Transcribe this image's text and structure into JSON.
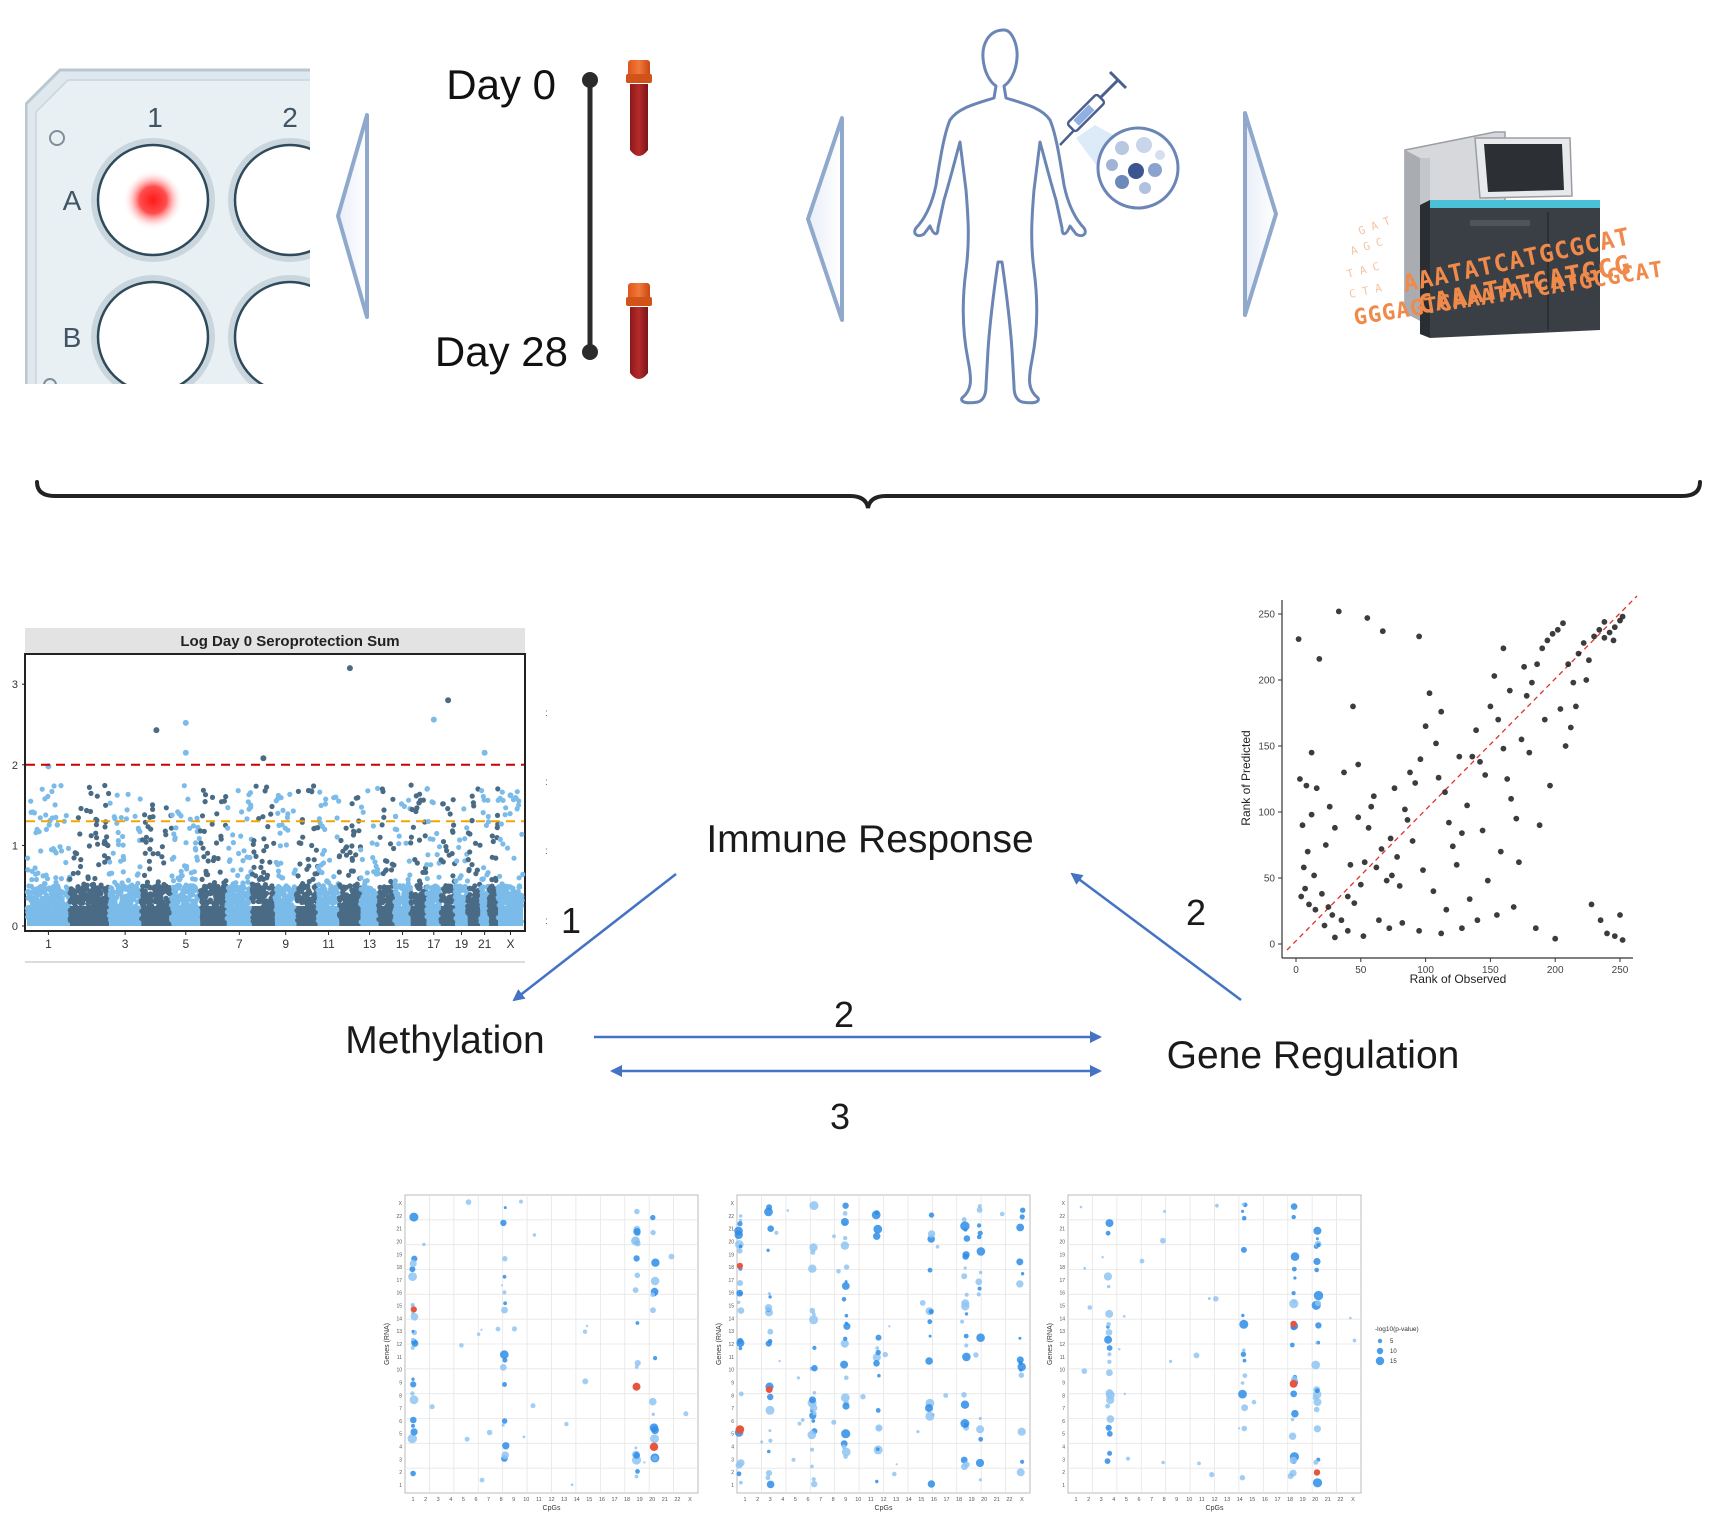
{
  "plate": {
    "columns": [
      "1",
      "2"
    ],
    "rows": [
      "A",
      "B"
    ]
  },
  "timeline": {
    "start": "Day 0",
    "end": "Day 28"
  },
  "sequence_text": [
    "AAATATCATGCGCAT",
    "CAAATATCATGCG",
    "GGGAGTCAAATATCATGCGCAT"
  ],
  "nodes": {
    "immune": "Immune Response",
    "methylation": "Methylation",
    "gene": "Gene Regulation"
  },
  "edges": {
    "immune_to_methylation": "1",
    "gene_to_immune": "2",
    "methylation_to_gene": "2",
    "bidirectional": "3"
  },
  "colors": {
    "accent_arrow": "#4472c4",
    "light_blue": "#7bbbe9",
    "dark_blue": "#4a6b85",
    "red_threshold": "#cc0000",
    "orange_threshold": "#f0a500"
  },
  "chart_data": [
    {
      "type": "scatter",
      "title": "Log Day 0 Seroprotection Sum",
      "x_ticks": [
        "1",
        "3",
        "5",
        "7",
        "9",
        "11",
        "13",
        "15",
        "17",
        "19",
        "21",
        "X"
      ],
      "y_ticks": [
        "0",
        "1",
        "2",
        "3"
      ],
      "ylim": [
        0,
        3.3
      ],
      "thresholds": [
        2.0,
        1.3
      ],
      "highlight_points": [
        {
          "chrom": "1",
          "y": 1.98
        },
        {
          "chrom": "4",
          "y": 2.43
        },
        {
          "chrom": "5",
          "y": 2.52
        },
        {
          "chrom": "5",
          "y": 2.15
        },
        {
          "chrom": "8",
          "y": 2.08
        },
        {
          "chrom": "12",
          "y": 3.2
        },
        {
          "chrom": "17",
          "y": 2.56
        },
        {
          "chrom": "18",
          "y": 2.8
        },
        {
          "chrom": "21",
          "y": 2.15
        },
        {
          "chrom": "X",
          "y": 1.62
        }
      ]
    },
    {
      "type": "scatter",
      "xlabel": "Rank of Observed",
      "ylabel": "Rank of Predicted",
      "x_ticks": [
        "0",
        "50",
        "100",
        "150",
        "200",
        "250"
      ],
      "y_ticks": [
        "0",
        "50",
        "100",
        "150",
        "200",
        "250"
      ],
      "xlim": [
        0,
        255
      ],
      "ylim": [
        0,
        255
      ],
      "points": [
        [
          2,
          231
        ],
        [
          18,
          216
        ],
        [
          33,
          252
        ],
        [
          55,
          247
        ],
        [
          67,
          237
        ],
        [
          95,
          233
        ],
        [
          3,
          125
        ],
        [
          8,
          120
        ],
        [
          12,
          145
        ],
        [
          16,
          118
        ],
        [
          5,
          90
        ],
        [
          9,
          70
        ],
        [
          14,
          52
        ],
        [
          7,
          42
        ],
        [
          20,
          38
        ],
        [
          25,
          28
        ],
        [
          28,
          22
        ],
        [
          35,
          18
        ],
        [
          40,
          36
        ],
        [
          45,
          31
        ],
        [
          50,
          45
        ],
        [
          53,
          62
        ],
        [
          48,
          96
        ],
        [
          56,
          88
        ],
        [
          60,
          112
        ],
        [
          62,
          58
        ],
        [
          66,
          72
        ],
        [
          70,
          48
        ],
        [
          73,
          80
        ],
        [
          78,
          66
        ],
        [
          80,
          44
        ],
        [
          84,
          102
        ],
        [
          88,
          130
        ],
        [
          92,
          122
        ],
        [
          96,
          140
        ],
        [
          100,
          165
        ],
        [
          103,
          190
        ],
        [
          108,
          152
        ],
        [
          112,
          176
        ],
        [
          115,
          115
        ],
        [
          118,
          92
        ],
        [
          121,
          74
        ],
        [
          124,
          60
        ],
        [
          128,
          84
        ],
        [
          132,
          105
        ],
        [
          136,
          142
        ],
        [
          139,
          162
        ],
        [
          142,
          138
        ],
        [
          146,
          128
        ],
        [
          150,
          180
        ],
        [
          153,
          203
        ],
        [
          156,
          170
        ],
        [
          160,
          148
        ],
        [
          163,
          125
        ],
        [
          166,
          110
        ],
        [
          170,
          95
        ],
        [
          174,
          155
        ],
        [
          178,
          188
        ],
        [
          182,
          198
        ],
        [
          186,
          212
        ],
        [
          190,
          224
        ],
        [
          194,
          230
        ],
        [
          198,
          235
        ],
        [
          202,
          238
        ],
        [
          206,
          243
        ],
        [
          210,
          212
        ],
        [
          214,
          198
        ],
        [
          218,
          220
        ],
        [
          222,
          228
        ],
        [
          226,
          215
        ],
        [
          230,
          233
        ],
        [
          234,
          238
        ],
        [
          238,
          232
        ],
        [
          242,
          236
        ],
        [
          246,
          240
        ],
        [
          250,
          245
        ],
        [
          252,
          248
        ],
        [
          228,
          30
        ],
        [
          235,
          18
        ],
        [
          240,
          8
        ],
        [
          246,
          6
        ],
        [
          250,
          22
        ],
        [
          252,
          3
        ],
        [
          200,
          4
        ],
        [
          185,
          12
        ],
        [
          168,
          28
        ],
        [
          155,
          22
        ],
        [
          140,
          18
        ],
        [
          128,
          12
        ],
        [
          112,
          8
        ],
        [
          95,
          10
        ],
        [
          82,
          16
        ],
        [
          72,
          12
        ],
        [
          64,
          18
        ],
        [
          52,
          6
        ],
        [
          40,
          10
        ],
        [
          30,
          5
        ],
        [
          22,
          14
        ],
        [
          15,
          26
        ],
        [
          10,
          30
        ],
        [
          6,
          58
        ],
        [
          4,
          36
        ],
        [
          23,
          75
        ],
        [
          30,
          88
        ],
        [
          42,
          60
        ],
        [
          58,
          104
        ],
        [
          76,
          118
        ],
        [
          86,
          94
        ],
        [
          98,
          56
        ],
        [
          106,
          40
        ],
        [
          116,
          26
        ],
        [
          134,
          34
        ],
        [
          148,
          48
        ],
        [
          158,
          70
        ],
        [
          172,
          62
        ],
        [
          188,
          90
        ],
        [
          196,
          120
        ],
        [
          208,
          150
        ],
        [
          216,
          180
        ],
        [
          224,
          200
        ],
        [
          212,
          164
        ],
        [
          204,
          178
        ],
        [
          180,
          145
        ],
        [
          165,
          192
        ],
        [
          144,
          86
        ],
        [
          126,
          142
        ],
        [
          110,
          126
        ],
        [
          90,
          78
        ],
        [
          74,
          52
        ],
        [
          44,
          180
        ],
        [
          48,
          136
        ],
        [
          37,
          130
        ],
        [
          26,
          104
        ],
        [
          12,
          98
        ],
        [
          192,
          170
        ],
        [
          176,
          210
        ],
        [
          160,
          224
        ],
        [
          245,
          230
        ],
        [
          238,
          244
        ]
      ]
    },
    {
      "type": "scatter",
      "xlabel": "CpGs",
      "ylabel": "Genes (RNA)",
      "x_ticks": [
        "1",
        "2",
        "3",
        "4",
        "5",
        "6",
        "7",
        "8",
        "9",
        "10",
        "11",
        "12",
        "13",
        "14",
        "15",
        "16",
        "17",
        "18",
        "19",
        "20",
        "21",
        "22",
        "X"
      ]
    },
    {
      "type": "scatter",
      "xlabel": "CpGs",
      "ylabel": "Genes (RNA)",
      "x_ticks": [
        "1",
        "2",
        "3",
        "4",
        "5",
        "6",
        "7",
        "8",
        "9",
        "10",
        "11",
        "12",
        "13",
        "14",
        "15",
        "16",
        "17",
        "18",
        "19",
        "20",
        "21",
        "22",
        "X"
      ]
    },
    {
      "type": "scatter",
      "xlabel": "CpGs",
      "ylabel": "Genes (RNA)",
      "x_ticks": [
        "1",
        "2",
        "3",
        "4",
        "5",
        "6",
        "7",
        "8",
        "9",
        "10",
        "11",
        "12",
        "13",
        "14",
        "15",
        "16",
        "17",
        "18",
        "19",
        "20",
        "21",
        "22",
        "X"
      ],
      "legend_title": "-log10(p-value)",
      "legend_values": [
        "5",
        "10",
        "15"
      ]
    }
  ]
}
